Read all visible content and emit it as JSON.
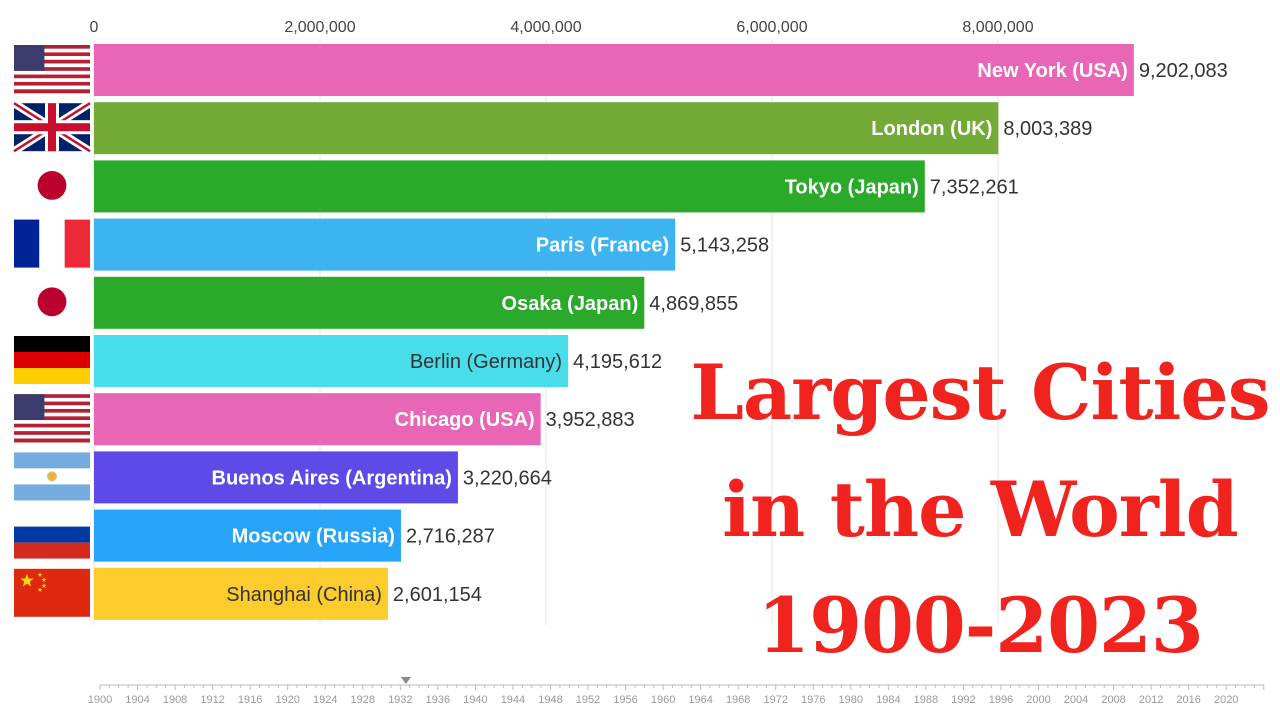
{
  "chart_data": {
    "type": "bar",
    "orientation": "horizontal",
    "title_lines": [
      "Largest Cities",
      "in the World",
      "1900-2023"
    ],
    "xlim": [
      0,
      9500000
    ],
    "x_ticks": [
      0,
      2000000,
      4000000,
      6000000,
      8000000
    ],
    "x_tick_labels": [
      "0",
      "2,000,000",
      "4,000,000",
      "6,000,000",
      "8,000,000"
    ],
    "grid": true,
    "current_year": 1932,
    "bars": [
      {
        "label": "New York (USA)",
        "value": 9202083,
        "value_label": "9,202,083",
        "color": "#e966b6",
        "label_color": "#ffffff",
        "flag": "usa"
      },
      {
        "label": "London (UK)",
        "value": 8003389,
        "value_label": "8,003,389",
        "color": "#74aa36",
        "label_color": "#ffffff",
        "flag": "uk"
      },
      {
        "label": "Tokyo (Japan)",
        "value": 7352261,
        "value_label": "7,352,261",
        "color": "#2aa92a",
        "label_color": "#ffffff",
        "flag": "japan"
      },
      {
        "label": "Paris (France)",
        "value": 5143258,
        "value_label": "5,143,258",
        "color": "#3db4ef",
        "label_color": "#ffffff",
        "flag": "france"
      },
      {
        "label": "Osaka (Japan)",
        "value": 4869855,
        "value_label": "4,869,855",
        "color": "#2aa92a",
        "label_color": "#ffffff",
        "flag": "japan"
      },
      {
        "label": "Berlin (Germany)",
        "value": 4195612,
        "value_label": "4,195,612",
        "color": "#48dde8",
        "label_color": "#333333",
        "flag": "germany"
      },
      {
        "label": "Chicago (USA)",
        "value": 3952883,
        "value_label": "3,952,883",
        "color": "#e966b6",
        "label_color": "#ffffff",
        "flag": "usa"
      },
      {
        "label": "Buenos Aires (Argentina)",
        "value": 3220664,
        "value_label": "3,220,664",
        "color": "#5e4ae6",
        "label_color": "#ffffff",
        "flag": "argentina"
      },
      {
        "label": "Moscow (Russia)",
        "value": 2716287,
        "value_label": "2,716,287",
        "color": "#27a3f7",
        "label_color": "#ffffff",
        "flag": "russia"
      },
      {
        "label": "Shanghai (China)",
        "value": 2601154,
        "value_label": "2,601,154",
        "color": "#fccb2c",
        "label_color": "#333333",
        "flag": "china"
      }
    ],
    "timeline": {
      "start": 1900,
      "end": 2024,
      "tick_labels": [
        "1900",
        "1904",
        "1908",
        "1912",
        "1916",
        "1920",
        "1924",
        "1928",
        "1932",
        "1936",
        "1940",
        "1944",
        "1948",
        "1952",
        "1956",
        "1960",
        "1964",
        "1968",
        "1972",
        "1976",
        "1980",
        "1984",
        "1988",
        "1992",
        "1996",
        "2000",
        "2004",
        "2008",
        "2012",
        "2016",
        "2020"
      ]
    }
  }
}
